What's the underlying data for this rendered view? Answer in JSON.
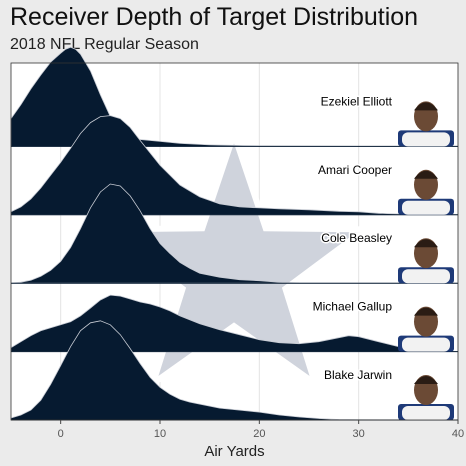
{
  "header": {
    "title": "Receiver Depth of Target Distribution",
    "subtitle": "2018 NFL Regular Season"
  },
  "colors": {
    "ridge_fill": "#061a30",
    "ridge_outline": "#c8ccd4",
    "panel_bg": "#ffffff",
    "star_fill": "#cfd3dc",
    "star_outline": "#ffffff",
    "grid": "#e4e4e4"
  },
  "chart_data": {
    "type": "ridgeline",
    "title": "Receiver Depth of Target Distribution",
    "subtitle": "2018 NFL Regular Season",
    "xlabel": "Air Yards",
    "ylabel": "",
    "xlim": [
      -5,
      40
    ],
    "x_ticks": [
      0,
      10,
      20,
      30,
      40
    ],
    "grid": true,
    "background_logo": "star-icon",
    "series": [
      {
        "name": "Ezekiel Elliott",
        "photo": "player-headshot-icon",
        "points": [
          [
            -5,
            0.28
          ],
          [
            -4,
            0.42
          ],
          [
            -3,
            0.58
          ],
          [
            -2,
            0.72
          ],
          [
            -1,
            0.85
          ],
          [
            0,
            0.94
          ],
          [
            0.5,
            0.98
          ],
          [
            1,
            1.0
          ],
          [
            1.5,
            0.98
          ],
          [
            2,
            0.93
          ],
          [
            3,
            0.76
          ],
          [
            4,
            0.52
          ],
          [
            5,
            0.3
          ],
          [
            6,
            0.16
          ],
          [
            7,
            0.1
          ],
          [
            8,
            0.07
          ],
          [
            10,
            0.05
          ],
          [
            12,
            0.03
          ],
          [
            15,
            0.015
          ],
          [
            20,
            0.005
          ],
          [
            25,
            0.002
          ],
          [
            30,
            0.0
          ],
          [
            40,
            0.0
          ]
        ]
      },
      {
        "name": "Amari Cooper",
        "photo": "player-headshot-icon",
        "points": [
          [
            -5,
            0.03
          ],
          [
            -4,
            0.08
          ],
          [
            -3,
            0.16
          ],
          [
            -2,
            0.27
          ],
          [
            -1,
            0.4
          ],
          [
            0,
            0.53
          ],
          [
            1,
            0.67
          ],
          [
            2,
            0.82
          ],
          [
            3,
            0.93
          ],
          [
            4,
            0.99
          ],
          [
            5,
            1.0
          ],
          [
            6,
            0.97
          ],
          [
            7,
            0.88
          ],
          [
            8,
            0.75
          ],
          [
            10,
            0.5
          ],
          [
            12,
            0.3
          ],
          [
            14,
            0.18
          ],
          [
            16,
            0.11
          ],
          [
            18,
            0.08
          ],
          [
            20,
            0.07
          ],
          [
            22,
            0.06
          ],
          [
            25,
            0.05
          ],
          [
            28,
            0.035
          ],
          [
            30,
            0.03
          ],
          [
            32,
            0.015
          ],
          [
            35,
            0.005
          ],
          [
            40,
            0.0
          ]
        ]
      },
      {
        "name": "Cole Beasley",
        "photo": "player-headshot-icon",
        "points": [
          [
            -5,
            0.0
          ],
          [
            -4,
            0.01
          ],
          [
            -3,
            0.03
          ],
          [
            -2,
            0.07
          ],
          [
            -1,
            0.13
          ],
          [
            0,
            0.22
          ],
          [
            1,
            0.36
          ],
          [
            2,
            0.55
          ],
          [
            3,
            0.76
          ],
          [
            4,
            0.92
          ],
          [
            5,
            1.0
          ],
          [
            6,
            0.98
          ],
          [
            7,
            0.88
          ],
          [
            8,
            0.73
          ],
          [
            9,
            0.55
          ],
          [
            10,
            0.4
          ],
          [
            11,
            0.3
          ],
          [
            12,
            0.21
          ],
          [
            13,
            0.15
          ],
          [
            14,
            0.1
          ],
          [
            16,
            0.06
          ],
          [
            18,
            0.035
          ],
          [
            20,
            0.025
          ],
          [
            22,
            0.01
          ],
          [
            24,
            0.002
          ],
          [
            26,
            0.0
          ],
          [
            40,
            0.0
          ]
        ]
      },
      {
        "name": "Michael Gallup",
        "photo": "player-headshot-icon",
        "points": [
          [
            -5,
            0.04
          ],
          [
            -4,
            0.1
          ],
          [
            -3,
            0.16
          ],
          [
            -2,
            0.21
          ],
          [
            -1,
            0.24
          ],
          [
            0,
            0.27
          ],
          [
            1,
            0.3
          ],
          [
            2,
            0.36
          ],
          [
            3,
            0.44
          ],
          [
            4,
            0.52
          ],
          [
            5,
            0.57
          ],
          [
            6,
            0.56
          ],
          [
            7,
            0.53
          ],
          [
            8,
            0.5
          ],
          [
            9,
            0.48
          ],
          [
            10,
            0.45
          ],
          [
            11,
            0.41
          ],
          [
            12,
            0.36
          ],
          [
            14,
            0.28
          ],
          [
            16,
            0.22
          ],
          [
            18,
            0.17
          ],
          [
            20,
            0.12
          ],
          [
            22,
            0.09
          ],
          [
            24,
            0.08
          ],
          [
            26,
            0.1
          ],
          [
            28,
            0.14
          ],
          [
            29,
            0.16
          ],
          [
            30,
            0.15
          ],
          [
            32,
            0.1
          ],
          [
            34,
            0.05
          ],
          [
            36,
            0.02
          ],
          [
            38,
            0.005
          ],
          [
            40,
            0.0
          ]
        ]
      },
      {
        "name": "Blake Jarwin",
        "photo": "player-headshot-icon",
        "points": [
          [
            -5,
            0.02
          ],
          [
            -4,
            0.05
          ],
          [
            -3,
            0.1
          ],
          [
            -2,
            0.2
          ],
          [
            -1,
            0.36
          ],
          [
            0,
            0.55
          ],
          [
            1,
            0.74
          ],
          [
            2,
            0.9
          ],
          [
            3,
            0.98
          ],
          [
            4,
            1.0
          ],
          [
            5,
            0.96
          ],
          [
            6,
            0.86
          ],
          [
            7,
            0.72
          ],
          [
            8,
            0.57
          ],
          [
            9,
            0.43
          ],
          [
            10,
            0.33
          ],
          [
            11,
            0.26
          ],
          [
            12,
            0.21
          ],
          [
            13,
            0.18
          ],
          [
            14,
            0.16
          ],
          [
            15,
            0.14
          ],
          [
            16,
            0.12
          ],
          [
            17,
            0.11
          ],
          [
            18,
            0.1
          ],
          [
            19,
            0.09
          ],
          [
            20,
            0.08
          ],
          [
            22,
            0.05
          ],
          [
            24,
            0.03
          ],
          [
            26,
            0.015
          ],
          [
            28,
            0.005
          ],
          [
            30,
            0.002
          ],
          [
            40,
            0.0
          ]
        ]
      }
    ]
  }
}
